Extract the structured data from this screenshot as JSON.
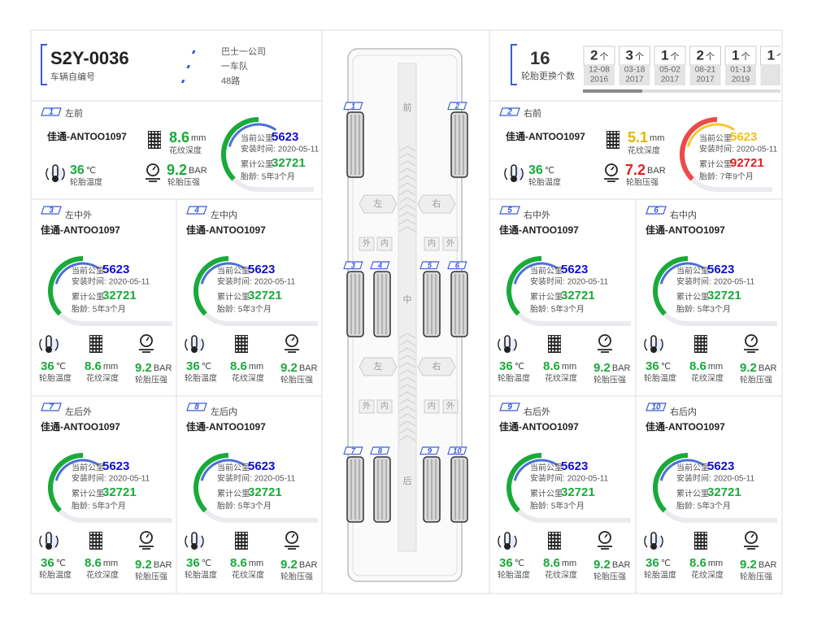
{
  "header": {
    "vehicle_id": "S2Y-0036",
    "vehicle_id_label": "车辆自编号",
    "tags": [
      "巴士一公司",
      "一车队",
      "48路"
    ],
    "replaced_count": 16,
    "replaced_label": "轮胎更换个数",
    "unit": "个",
    "history": [
      {
        "count": 2,
        "date": "12-08",
        "year": "2016"
      },
      {
        "count": 3,
        "date": "03-18",
        "year": "2017"
      },
      {
        "count": 1,
        "date": "05-02",
        "year": "2017"
      },
      {
        "count": 2,
        "date": "08-21",
        "year": "2017"
      },
      {
        "count": 1,
        "date": "01-13",
        "year": "2019"
      },
      {
        "count": 1
      }
    ]
  },
  "labels": {
    "current": "当前公里",
    "install": "安装时间:",
    "total": "累计公里",
    "age": "胎龄:",
    "temp": "轮胎温度",
    "depth": "花纹深度",
    "pressure": "轮胎压强",
    "temp_unit": "℃",
    "depth_unit": "mm",
    "pressure_unit": "BAR"
  },
  "bus": {
    "front": "前",
    "middle": "中",
    "rear": "后",
    "left": "左",
    "right": "右",
    "outer": "外",
    "inner": "内"
  },
  "tires": [
    {
      "num": 1,
      "position": "左前",
      "brand": "佳通-ANTOO1097",
      "current_km": 5623,
      "install": "2020-05-11",
      "total_km": 32721,
      "age": "5年3个月",
      "temp": 36,
      "depth": 8.6,
      "pressure": 9.2
    },
    {
      "num": 2,
      "position": "右前",
      "brand": "佳通-ANTOO1097",
      "current_km": 5623,
      "install": "2020-05-11",
      "total_km": 92721,
      "age": "7年9个月",
      "temp": 36,
      "depth": 5.1,
      "pressure": 7.2,
      "depth_color": "#e8b400",
      "pressure_color": "#e02020",
      "current_color": "#f0c020",
      "total_color": "#e02020",
      "arc_color": "#ec4a4a",
      "arc_inner_color": "#f5c730"
    },
    {
      "num": 3,
      "position": "左中外",
      "brand": "佳通-ANTOO1097",
      "current_km": 5623,
      "install": "2020-05-11",
      "total_km": 32721,
      "age": "5年3个月",
      "temp": 36,
      "depth": 8.6,
      "pressure": 9.2
    },
    {
      "num": 4,
      "position": "左中内",
      "brand": "佳通-ANTOO1097",
      "current_km": 5623,
      "install": "2020-05-11",
      "total_km": 32721,
      "age": "5年3个月",
      "temp": 36,
      "depth": 8.6,
      "pressure": 9.2
    },
    {
      "num": 5,
      "position": "右中外",
      "brand": "佳通-ANTOO1097",
      "current_km": 5623,
      "install": "2020-05-11",
      "total_km": 32721,
      "age": "5年3个月",
      "temp": 36,
      "depth": 8.6,
      "pressure": 9.2
    },
    {
      "num": 6,
      "position": "右中内",
      "brand": "佳通-ANTOO1097",
      "current_km": 5623,
      "install": "2020-05-11",
      "total_km": 32721,
      "age": "5年3个月",
      "temp": 36,
      "depth": 8.6,
      "pressure": 9.2
    },
    {
      "num": 7,
      "position": "左后外",
      "brand": "佳通-ANTOO1097",
      "current_km": 5623,
      "install": "2020-05-11",
      "total_km": 32721,
      "age": "5年3个月",
      "temp": 36,
      "depth": 8.6,
      "pressure": 9.2
    },
    {
      "num": 8,
      "position": "左后内",
      "brand": "佳通-ANTOO1097",
      "current_km": 5623,
      "install": "2020-05-11",
      "total_km": 32721,
      "age": "5年3个月",
      "temp": 36,
      "depth": 8.6,
      "pressure": 9.2
    },
    {
      "num": 9,
      "position": "右后外",
      "brand": "佳通-ANTOO1097",
      "current_km": 5623,
      "install": "2020-05-11",
      "total_km": 32721,
      "age": "5年3个月",
      "temp": 36,
      "depth": 8.6,
      "pressure": 9.2
    },
    {
      "num": 10,
      "position": "右后内",
      "brand": "佳通-ANTOO1097",
      "current_km": 5623,
      "install": "2020-05-11",
      "total_km": 32721,
      "age": "5年3个月",
      "temp": 36,
      "depth": 8.6,
      "pressure": 9.2
    }
  ]
}
